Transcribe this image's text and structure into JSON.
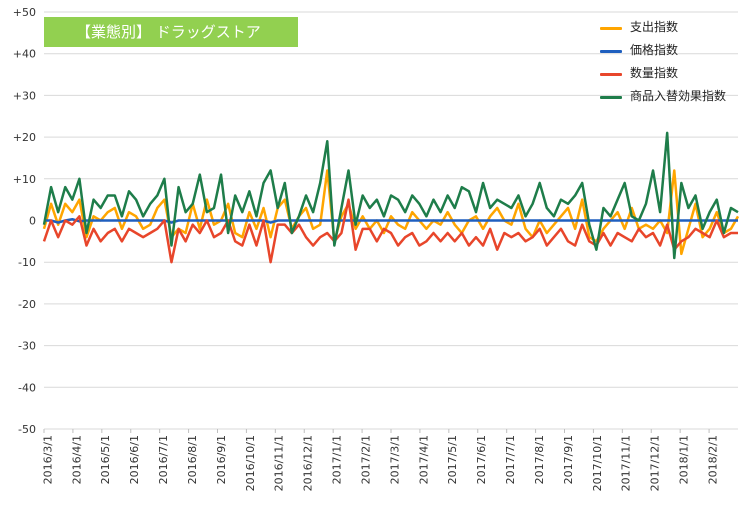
{
  "chart_data": {
    "type": "line",
    "title": "【業態別】 ドラッグストア",
    "xlabel": "",
    "ylabel": "",
    "ylim": [
      -50,
      50
    ],
    "y_ticks": [
      "+50",
      "+40",
      "+30",
      "+20",
      "+10",
      "0",
      "-10",
      "-20",
      "-30",
      "-40",
      "-50"
    ],
    "x_tick_labels": [
      "2016/3/1",
      "2016/4/1",
      "2016/5/1",
      "2016/6/1",
      "2016/7/1",
      "2016/8/1",
      "2016/9/1",
      "2016/10/1",
      "2016/11/1",
      "2016/12/1",
      "2017/1/1",
      "2017/2/1",
      "2017/3/1",
      "2017/4/1",
      "2017/5/1",
      "2017/6/1",
      "2017/7/1",
      "2017/8/1",
      "2017/9/1",
      "2017/10/1",
      "2017/11/1",
      "2017/12/1",
      "2018/1/1",
      "2018/2/1"
    ],
    "x_range": [
      "2016-03-01",
      "2018-02-28"
    ],
    "grid": true,
    "legend_position": "top-right",
    "series": [
      {
        "name": "支出指数",
        "color": "#ffa500",
        "values": [
          -2,
          4,
          -1,
          4,
          2,
          5,
          -4,
          1,
          0,
          2,
          3,
          -2,
          2,
          1,
          -2,
          -1,
          3,
          5,
          -4,
          -2,
          -3,
          4,
          -2,
          5,
          -1,
          0,
          4,
          -3,
          -4,
          2,
          -2,
          3,
          -4,
          3,
          5,
          -2,
          1,
          3,
          -2,
          -1,
          12,
          -5,
          1,
          4,
          -2,
          1,
          -2,
          0,
          -3,
          1,
          -1,
          -2,
          2,
          0,
          -2,
          0,
          -1,
          2,
          -1,
          -3,
          0,
          1,
          -2,
          1,
          3,
          0,
          -1,
          4,
          -2,
          -4,
          0,
          -3,
          -1,
          1,
          3,
          -2,
          5,
          -4,
          -5,
          -2,
          0,
          2,
          -2,
          3,
          -2,
          -1,
          -2,
          0,
          -3,
          12,
          -8,
          -2,
          4,
          -4,
          -2,
          2,
          -3,
          -2,
          1
        ]
      },
      {
        "name": "価格指数",
        "color": "#1f5fbf",
        "values": [
          0,
          0,
          -0.5,
          0,
          0.3,
          -0.2,
          0,
          0,
          0,
          0,
          0,
          0,
          0,
          0,
          0,
          0,
          0,
          0,
          -0.5,
          0,
          0,
          0,
          0,
          0,
          0,
          0,
          0,
          0,
          0,
          0,
          0,
          0,
          -0.5,
          0,
          0,
          0,
          0,
          0,
          0,
          0,
          0,
          0,
          0,
          0,
          0,
          0,
          0,
          0,
          0,
          0,
          0,
          0,
          0,
          0,
          0,
          0,
          0,
          0,
          0,
          0,
          0,
          0,
          0,
          0,
          0,
          0,
          0,
          0,
          0,
          0,
          0,
          0,
          0,
          0,
          0,
          0,
          0,
          0,
          0,
          0,
          0,
          0,
          0,
          0,
          0,
          0,
          0,
          0,
          0,
          0,
          0,
          0,
          0,
          0,
          0,
          0,
          0,
          0,
          0
        ]
      },
      {
        "name": "数量指数",
        "color": "#e8462b",
        "values": [
          -5,
          0,
          -4,
          0,
          -1,
          1,
          -6,
          -2,
          -5,
          -3,
          -2,
          -5,
          -2,
          -3,
          -4,
          -3,
          -2,
          0,
          -10,
          -2,
          -5,
          -1,
          -3,
          0,
          -4,
          -3,
          0,
          -5,
          -6,
          -1,
          -6,
          0,
          -10,
          -1,
          -1,
          -3,
          -1,
          -4,
          -6,
          -4,
          -3,
          -5,
          -3,
          5,
          -7,
          -2,
          -2,
          -5,
          -2,
          -3,
          -6,
          -4,
          -3,
          -6,
          -5,
          -3,
          -5,
          -3,
          -5,
          -3,
          -6,
          -4,
          -6,
          -2,
          -7,
          -3,
          -4,
          -3,
          -5,
          -4,
          -2,
          -6,
          -4,
          -2,
          -5,
          -6,
          -1,
          -5,
          -6,
          -3,
          -6,
          -3,
          -4,
          -5,
          -2,
          -4,
          -3,
          -6,
          -1,
          -7,
          -5,
          -4,
          -2,
          -3,
          -4,
          0,
          -4,
          -3,
          -3
        ]
      },
      {
        "name": "商品入替効果指数",
        "color": "#1e7d4a",
        "values": [
          -1,
          8,
          2,
          8,
          5,
          10,
          -3,
          5,
          3,
          6,
          6,
          1,
          7,
          5,
          1,
          4,
          6,
          10,
          -6,
          8,
          2,
          4,
          11,
          2,
          3,
          11,
          -3,
          6,
          2,
          7,
          1,
          9,
          12,
          3,
          9,
          -3,
          1,
          6,
          2,
          9,
          19,
          -6,
          3,
          12,
          -1,
          6,
          3,
          5,
          1,
          6,
          5,
          2,
          6,
          4,
          1,
          5,
          2,
          6,
          3,
          8,
          7,
          2,
          9,
          3,
          5,
          4,
          3,
          6,
          1,
          4,
          9,
          3,
          1,
          5,
          4,
          6,
          9,
          -1,
          -7,
          3,
          1,
          5,
          9,
          1,
          0,
          4,
          12,
          2,
          21,
          -9,
          9,
          3,
          6,
          -2,
          2,
          5,
          -3,
          3,
          2
        ]
      }
    ]
  }
}
